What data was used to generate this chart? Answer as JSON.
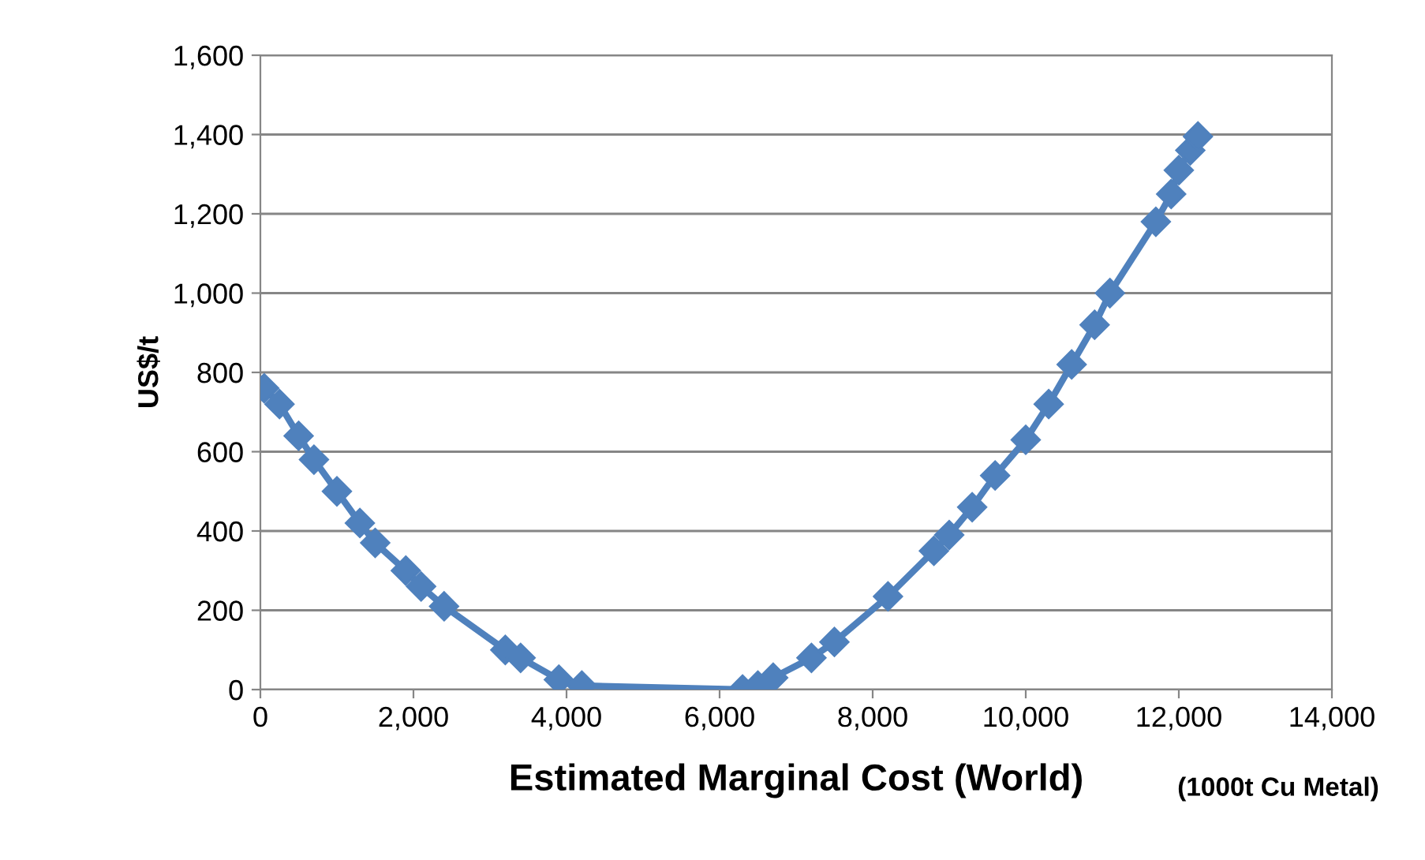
{
  "chart_data": {
    "type": "line",
    "xlabel": "Estimated Marginal Cost (World)",
    "ylabel": "US$/t",
    "annotations": [
      "(1000t Cu Metal)"
    ],
    "xlim": [
      0,
      14000
    ],
    "xticks": [
      {
        "value": 0,
        "label": "0"
      },
      {
        "value": 2000,
        "label": "2,000"
      },
      {
        "value": 4000,
        "label": "4,000"
      },
      {
        "value": 6000,
        "label": "6,000"
      },
      {
        "value": 8000,
        "label": "8,000"
      },
      {
        "value": 10000,
        "label": "10,000"
      },
      {
        "value": 12000,
        "label": "12,000"
      },
      {
        "value": 14000,
        "label": "14,000"
      }
    ],
    "ylim": [
      0,
      1600
    ],
    "yticks": [
      {
        "value": 0,
        "label": "0"
      },
      {
        "value": 200,
        "label": "200"
      },
      {
        "value": 400,
        "label": "400"
      },
      {
        "value": 600,
        "label": "600"
      },
      {
        "value": 800,
        "label": "800"
      },
      {
        "value": 1000,
        "label": "1,000"
      },
      {
        "value": 1200,
        "label": "1,200"
      },
      {
        "value": 1400,
        "label": "1,400"
      },
      {
        "value": 1600,
        "label": "1,600"
      }
    ],
    "grid": "y",
    "marker": "diamond",
    "line_style": "solid",
    "legend": false,
    "series": [
      {
        "color": "#4f81bd",
        "x": [
          50,
          250,
          500,
          700,
          1000,
          1300,
          1500,
          1900,
          2100,
          2400,
          3200,
          3400,
          3900,
          4200,
          6300,
          6500,
          6700,
          7200,
          7500,
          8200,
          8800,
          9000,
          9300,
          9600,
          10000,
          10300,
          10600,
          10900,
          11100,
          11700,
          11900,
          12000,
          12150,
          12250
        ],
        "values": [
          760,
          720,
          640,
          580,
          500,
          420,
          370,
          300,
          260,
          210,
          100,
          80,
          25,
          10,
          0,
          10,
          30,
          80,
          120,
          235,
          350,
          390,
          460,
          540,
          630,
          720,
          820,
          920,
          1000,
          1180,
          1250,
          1310,
          1360,
          1395
        ]
      }
    ]
  }
}
